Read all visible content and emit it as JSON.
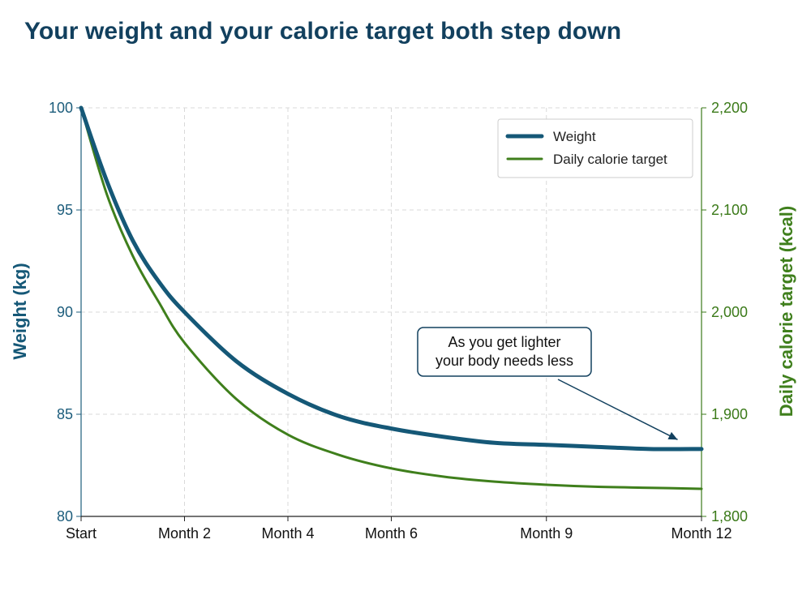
{
  "title": "Your weight and your calorie target both step down",
  "chart_data": {
    "type": "line",
    "title": "Your weight and your calorie target both step down",
    "x_categories": [
      "Start",
      "Month 2",
      "Month 4",
      "Month 6",
      "Month 9",
      "Month 12"
    ],
    "x_positions": [
      0,
      2,
      4,
      6,
      9,
      12
    ],
    "xlim": [
      0,
      12
    ],
    "y_left": {
      "label": "Weight (kg)",
      "ylim": [
        80,
        100
      ],
      "ticks": [
        "80",
        "85",
        "90",
        "95",
        "100"
      ],
      "tick_values": [
        80,
        85,
        90,
        95,
        100
      ]
    },
    "y_right": {
      "label": "Daily calorie target (kcal)",
      "ylim": [
        1800,
        2200
      ],
      "ticks": [
        "1,800",
        "1,900",
        "2,000",
        "2,100",
        "2,200"
      ],
      "tick_values": [
        1800,
        1900,
        2000,
        2100,
        2200
      ]
    },
    "grid": true,
    "legend": {
      "position": "top-right"
    },
    "series": [
      {
        "name": "Weight",
        "axis": "left",
        "color": "#155877",
        "x": [
          0,
          0.5,
          1,
          1.5,
          2,
          3,
          4,
          5,
          6,
          7,
          8,
          9,
          10,
          11,
          12
        ],
        "y": [
          100,
          96.4,
          93.5,
          91.5,
          90.0,
          87.6,
          86.0,
          84.9,
          84.3,
          83.9,
          83.6,
          83.5,
          83.4,
          83.3,
          83.3
        ]
      },
      {
        "name": "Daily calorie target",
        "axis": "right",
        "color": "#3f7f1c",
        "x": [
          0,
          0.5,
          1,
          1.5,
          2,
          3,
          4,
          5,
          6,
          7,
          8,
          9,
          10,
          11,
          12
        ],
        "y": [
          2200,
          2115,
          2055,
          2010,
          1970,
          1915,
          1880,
          1860,
          1847,
          1839,
          1834,
          1831,
          1829,
          1828,
          1827
        ]
      }
    ],
    "annotation": {
      "text_lines": [
        "As you get lighter",
        "your body needs less"
      ],
      "points_to": {
        "series": "Weight",
        "x": 11.6,
        "y": 83.4
      }
    }
  }
}
